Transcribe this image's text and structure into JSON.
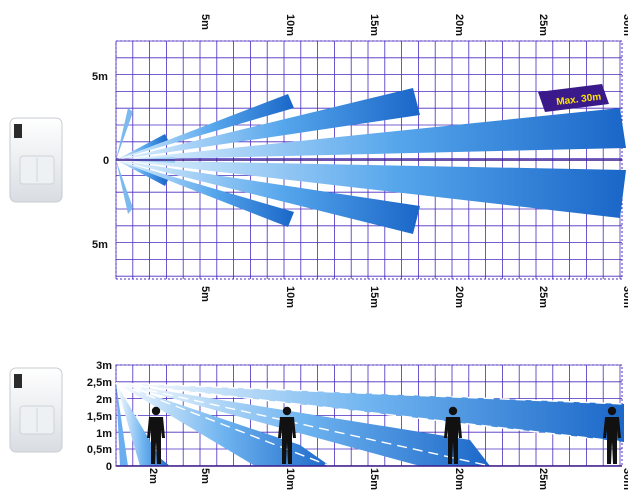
{
  "top_view": {
    "x_ticks": [
      "5m",
      "10m",
      "15m",
      "20m",
      "25m",
      "30m"
    ],
    "y_ticks": [
      "5m",
      "0",
      "5m"
    ],
    "range_badge": "Max. 30m"
  },
  "side_view": {
    "x_ticks": [
      "2m",
      "5m",
      "10m",
      "15m",
      "20m",
      "25m",
      "30m"
    ],
    "y_ticks": [
      "3m",
      "2,5m",
      "2m",
      "1,5m",
      "1m",
      "0,5m",
      "0"
    ]
  },
  "colors": {
    "grid": "#4a2bbf",
    "beam_light": "#e8f4ff",
    "beam_dark": "#1f6fd0",
    "badge": "#3a1a8a",
    "badge_text": "#ffe600",
    "silhouette": "#111111"
  },
  "icons": [
    "pir-sensor-icon",
    "person-silhouette-icon"
  ]
}
